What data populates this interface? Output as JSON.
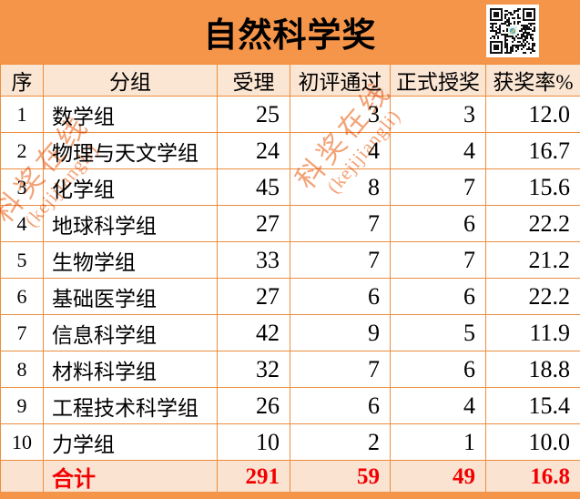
{
  "title": "自然科学奖",
  "watermark": {
    "line1": "科奖在线",
    "line2": "(kejijiangli)"
  },
  "colors": {
    "banner": "#F5954A",
    "border": "#ED8D3D",
    "header_bg": "#FBE5D3",
    "total_row_bg": "#FAE3D1",
    "total_text": "#F20000",
    "watermark": "#F2A377",
    "body_text": "#000000"
  },
  "table": {
    "columns": [
      "序",
      "分组",
      "受理",
      "初评通过",
      "正式授奖",
      "获奖率%"
    ],
    "rows": [
      {
        "seq": "1",
        "group": "数学组",
        "accepted": "25",
        "prelim": "3",
        "awarded": "3",
        "rate": "12.0"
      },
      {
        "seq": "2",
        "group": "物理与天文学组",
        "accepted": "24",
        "prelim": "4",
        "awarded": "4",
        "rate": "16.7"
      },
      {
        "seq": "3",
        "group": "化学组",
        "accepted": "45",
        "prelim": "8",
        "awarded": "7",
        "rate": "15.6"
      },
      {
        "seq": "4",
        "group": "地球科学组",
        "accepted": "27",
        "prelim": "7",
        "awarded": "6",
        "rate": "22.2"
      },
      {
        "seq": "5",
        "group": "生物学组",
        "accepted": "33",
        "prelim": "7",
        "awarded": "7",
        "rate": "21.2"
      },
      {
        "seq": "6",
        "group": "基础医学组",
        "accepted": "27",
        "prelim": "6",
        "awarded": "6",
        "rate": "22.2"
      },
      {
        "seq": "7",
        "group": "信息科学组",
        "accepted": "42",
        "prelim": "9",
        "awarded": "5",
        "rate": "11.9"
      },
      {
        "seq": "8",
        "group": "材料科学组",
        "accepted": "32",
        "prelim": "7",
        "awarded": "6",
        "rate": "18.8"
      },
      {
        "seq": "9",
        "group": "工程技术科学组",
        "accepted": "26",
        "prelim": "6",
        "awarded": "4",
        "rate": "15.4"
      },
      {
        "seq": "10",
        "group": "力学组",
        "accepted": "10",
        "prelim": "2",
        "awarded": "1",
        "rate": "10.0"
      }
    ],
    "total": {
      "seq": "",
      "label": "合计",
      "accepted": "291",
      "prelim": "59",
      "awarded": "49",
      "rate": "16.8"
    }
  },
  "chart_data": {
    "type": "table",
    "title": "自然科学奖",
    "columns": [
      "序",
      "分组",
      "受理",
      "初评通过",
      "正式授奖",
      "获奖率%"
    ],
    "rows": [
      [
        1,
        "数学组",
        25,
        3,
        3,
        12.0
      ],
      [
        2,
        "物理与天文学组",
        24,
        4,
        4,
        16.7
      ],
      [
        3,
        "化学组",
        45,
        8,
        7,
        15.6
      ],
      [
        4,
        "地球科学组",
        27,
        7,
        6,
        22.2
      ],
      [
        5,
        "生物学组",
        33,
        7,
        7,
        21.2
      ],
      [
        6,
        "基础医学组",
        27,
        6,
        6,
        22.2
      ],
      [
        7,
        "信息科学组",
        42,
        9,
        5,
        11.9
      ],
      [
        8,
        "材料科学组",
        32,
        7,
        6,
        18.8
      ],
      [
        9,
        "工程技术科学组",
        26,
        6,
        4,
        15.4
      ],
      [
        10,
        "力学组",
        10,
        2,
        1,
        10.0
      ]
    ],
    "total_row": [
      "",
      "合计",
      291,
      59,
      49,
      16.8
    ]
  }
}
